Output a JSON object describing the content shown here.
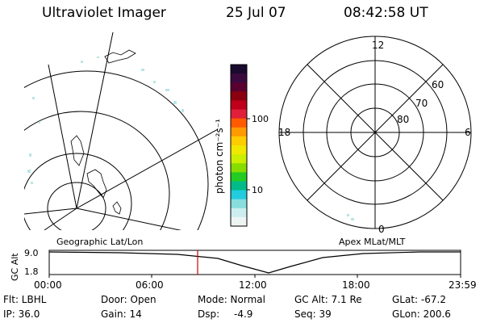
{
  "header": {
    "instrument": "Ultraviolet Imager",
    "date": "25 Jul 07",
    "time": "08:42:58 UT"
  },
  "colorbar": {
    "unit_label": "photon cm⁻²s⁻¹",
    "ticks": [
      "100",
      "10"
    ],
    "colors": [
      "#1a0a2e",
      "#3a0a3e",
      "#5a0030",
      "#8a0010",
      "#c0001a",
      "#e0203a",
      "#ff5a00",
      "#ff9a00",
      "#ffcc00",
      "#f0e800",
      "#ccee00",
      "#88dd00",
      "#22cc22",
      "#00bb88",
      "#22ccdd",
      "#88dddd",
      "#cceeee",
      "#eef4f4"
    ]
  },
  "polar_plot": {
    "mlt_labels": [
      "12",
      "18",
      "6",
      "0"
    ],
    "lat_labels": [
      "60",
      "70",
      "80"
    ]
  },
  "timeline": {
    "left_label": "Geographic Lat/Lon",
    "right_label": "Apex MLat/MLT",
    "y_axis_title": "GC Alt",
    "y_ticks": [
      "9.0",
      "1.8"
    ],
    "x_ticks": [
      "00:00",
      "06:00",
      "12:00",
      "18:00",
      "23:59"
    ],
    "marker_color": "#cc0000"
  },
  "info": {
    "filter": "Flt: LBHL",
    "ip": "IP: 36.0",
    "door": "Door: Open",
    "gain": "Gain: 14",
    "mode": "Mode: Normal",
    "dsp_label": "Dsp:",
    "dsp_value": "-4.9",
    "gc_alt": "GC Alt: 7.1 Re",
    "seq": "Seq: 39",
    "glat": "GLat: -67.2",
    "glon": "GLon: 200.6"
  }
}
